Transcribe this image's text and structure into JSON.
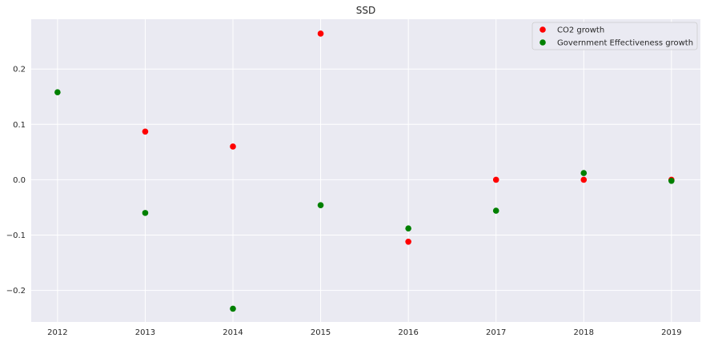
{
  "chart_data": {
    "type": "scatter",
    "title": "SSD",
    "xlabel": "",
    "ylabel": "",
    "x_ticks": [
      "2012",
      "2013",
      "2014",
      "2015",
      "2016",
      "2017",
      "2018",
      "2019"
    ],
    "y_ticks": [
      "−0.2",
      "−0.1",
      "0.0",
      "0.1",
      "0.2"
    ],
    "xlim": [
      2011.7,
      2019.33
    ],
    "ylim": [
      -0.257,
      0.29
    ],
    "grid": true,
    "legend_position": "top-right",
    "series": [
      {
        "name": "CO2 growth",
        "color": "#ff0000",
        "points": [
          {
            "x": 2013,
            "y": 0.087
          },
          {
            "x": 2014,
            "y": 0.06
          },
          {
            "x": 2015,
            "y": 0.264
          },
          {
            "x": 2016,
            "y": -0.112
          },
          {
            "x": 2017,
            "y": 0.0
          },
          {
            "x": 2018,
            "y": 0.0
          },
          {
            "x": 2019,
            "y": 0.0
          }
        ]
      },
      {
        "name": "Government Effectiveness growth",
        "color": "#008000",
        "points": [
          {
            "x": 2012,
            "y": 0.158
          },
          {
            "x": 2013,
            "y": -0.06
          },
          {
            "x": 2014,
            "y": -0.233
          },
          {
            "x": 2015,
            "y": -0.046
          },
          {
            "x": 2016,
            "y": -0.088
          },
          {
            "x": 2017,
            "y": -0.056
          },
          {
            "x": 2018,
            "y": 0.012
          },
          {
            "x": 2019,
            "y": -0.002
          }
        ]
      }
    ]
  },
  "colors": {
    "background": "#eaeaf2",
    "grid": "#ffffff"
  }
}
